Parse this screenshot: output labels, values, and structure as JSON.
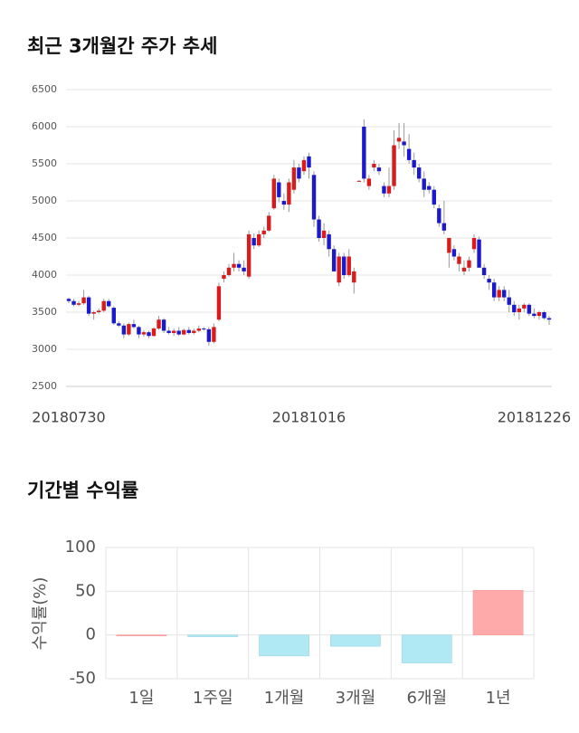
{
  "chart_data": [
    {
      "type": "candlestick",
      "title": "최근 3개월간 주가 추세",
      "categories": [
        "20180730",
        null,
        null,
        null,
        null,
        null,
        null,
        null,
        null,
        null,
        null,
        null,
        null,
        null,
        null,
        null,
        null,
        null,
        null,
        null,
        null,
        null,
        null,
        null,
        null,
        null,
        null,
        null,
        null,
        null,
        null,
        null,
        null,
        null,
        null,
        null,
        null,
        null,
        null,
        null,
        null,
        null,
        null,
        null,
        null,
        null,
        null,
        null,
        "20181016",
        null,
        null,
        null,
        null,
        null,
        null,
        null,
        null,
        null,
        null,
        null,
        null,
        null,
        null,
        null,
        null,
        null,
        null,
        null,
        null,
        null,
        null,
        null,
        null,
        null,
        null,
        null,
        null,
        null,
        null,
        null,
        null,
        null,
        null,
        null,
        null,
        null,
        null,
        null,
        null,
        null,
        null,
        null,
        null,
        "20181226",
        null,
        null,
        null
      ],
      "open": [
        3680,
        3650,
        3600,
        3620,
        3700,
        3480,
        3500,
        3520,
        3650,
        3560,
        3350,
        3320,
        3200,
        3340,
        3300,
        3200,
        3230,
        3180,
        3280,
        3400,
        3250,
        3220,
        3250,
        3200,
        3260,
        3220,
        3250,
        3280,
        3270,
        3100,
        3400,
        3950,
        4000,
        4100,
        4150,
        4100,
        3980,
        4500,
        4400,
        4550,
        4600,
        4900,
        5250,
        5000,
        4950,
        5150,
        5450,
        5400,
        5600,
        5350,
        4750,
        4500,
        4550,
        4350,
        3900,
        4250,
        4000,
        3900,
        5270,
        6000,
        5200,
        5450,
        5450,
        5200,
        5100,
        5200,
        5800,
        5800,
        5700,
        5550,
        5450,
        5300,
        5200,
        5150,
        4900,
        4700,
        4300,
        4350,
        4150,
        4050,
        4100,
        4350,
        4480,
        4100,
        3950,
        3900,
        3700,
        3800,
        3700,
        3600,
        3500,
        3550,
        3600,
        3480,
        3450,
        3500,
        3420
      ],
      "high": [
        3700,
        3680,
        3650,
        3800,
        3720,
        3520,
        3550,
        3680,
        3680,
        3580,
        3380,
        3350,
        3360,
        3400,
        3320,
        3260,
        3250,
        3300,
        3450,
        3420,
        3300,
        3280,
        3300,
        3280,
        3300,
        3280,
        3320,
        3300,
        3300,
        3350,
        3900,
        4050,
        4150,
        4300,
        4200,
        4200,
        4600,
        4560,
        4600,
        4650,
        4850,
        5350,
        5300,
        5100,
        5300,
        5550,
        5500,
        5600,
        5650,
        5400,
        4800,
        4700,
        4600,
        4400,
        4300,
        4300,
        4350,
        4100,
        5280,
        6100,
        5350,
        5550,
        5500,
        5250,
        5450,
        5950,
        6050,
        6050,
        5900,
        5650,
        5500,
        5400,
        5250,
        5200,
        4950,
        5000,
        4500,
        4400,
        4300,
        4200,
        4250,
        4550,
        4520,
        4150,
        4000,
        3950,
        3850,
        3850,
        3800,
        3650,
        3600,
        3620,
        3620,
        3550,
        3520,
        3520,
        3450
      ],
      "low": [
        3620,
        3580,
        3580,
        3600,
        3450,
        3400,
        3480,
        3500,
        3560,
        3330,
        3300,
        3150,
        3180,
        3280,
        3150,
        3170,
        3150,
        3170,
        3260,
        3220,
        3200,
        3180,
        3180,
        3190,
        3200,
        3200,
        3230,
        3250,
        3050,
        3080,
        3380,
        3900,
        3980,
        4050,
        4050,
        4000,
        3950,
        4350,
        4380,
        4500,
        4580,
        4880,
        4980,
        4880,
        4850,
        5100,
        5250,
        5350,
        5300,
        4650,
        4450,
        4400,
        4250,
        4050,
        3850,
        3950,
        3980,
        3750,
        5260,
        5250,
        5150,
        5400,
        5350,
        5050,
        5050,
        5150,
        5700,
        5600,
        5500,
        5350,
        5250,
        5050,
        5100,
        4900,
        4650,
        4550,
        4100,
        4200,
        4050,
        4000,
        4050,
        4300,
        4100,
        3950,
        3800,
        3650,
        3650,
        3650,
        3500,
        3450,
        3400,
        3500,
        3450,
        3420,
        3400,
        3400,
        3330
      ],
      "close": [
        3650,
        3600,
        3620,
        3700,
        3480,
        3500,
        3520,
        3650,
        3580,
        3350,
        3320,
        3200,
        3340,
        3300,
        3200,
        3230,
        3180,
        3280,
        3400,
        3250,
        3220,
        3250,
        3200,
        3260,
        3220,
        3250,
        3280,
        3270,
        3100,
        3300,
        3850,
        4000,
        4100,
        4150,
        4100,
        4050,
        4550,
        4400,
        4550,
        4600,
        4800,
        5300,
        5050,
        4950,
        5250,
        5450,
        5300,
        5550,
        5450,
        4750,
        4500,
        4600,
        4350,
        4050,
        4250,
        4000,
        4250,
        4050,
        5270,
        5300,
        5300,
        5500,
        5400,
        5100,
        5200,
        5750,
        5850,
        5750,
        5550,
        5450,
        5300,
        5150,
        5150,
        4950,
        4700,
        4600,
        4500,
        4250,
        4250,
        4100,
        4200,
        4500,
        4100,
        4000,
        3900,
        3700,
        3800,
        3700,
        3600,
        3500,
        3550,
        3600,
        3480,
        3450,
        3500,
        3420,
        3400
      ],
      "up_color": "#d81b1b",
      "down_color": "#1a1acc",
      "ylim": [
        2500,
        6500
      ],
      "yticks": [
        2500,
        3000,
        3500,
        4000,
        4500,
        5000,
        5500,
        6000,
        6500
      ],
      "grid": true
    },
    {
      "type": "bar",
      "title": "기간별 수익률",
      "y_label": "수익률(%)",
      "categories": [
        "1일",
        "1주일",
        "1개월",
        "3개월",
        "6개월",
        "1년"
      ],
      "values": [
        0,
        -2,
        -24,
        -13,
        -32,
        51
      ],
      "positive_color": "#ffaaaa",
      "negative_color": "#b0e8f4",
      "ylim": [
        -50,
        100
      ],
      "yticks": [
        -50,
        0,
        50,
        100
      ],
      "grid": true
    }
  ]
}
